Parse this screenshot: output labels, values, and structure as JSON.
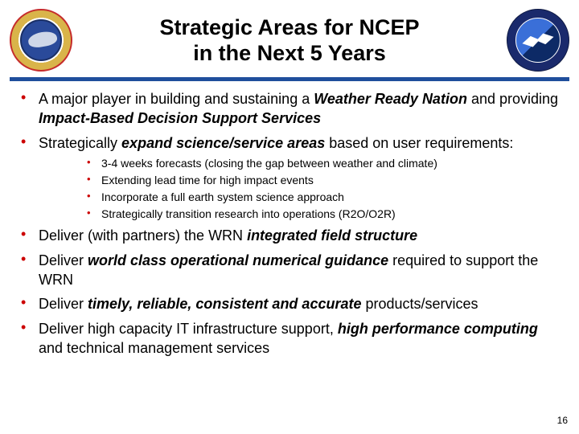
{
  "title_line1": "Strategic Areas for NCEP",
  "title_line2": "in the Next 5 Years",
  "title_fontsize": "27px",
  "bullet_color": "#cc0000",
  "divider_color": "#1f4e9c",
  "main_fontsize": "18px",
  "sub_fontsize": "14px",
  "slidenum": "16",
  "slidenum_fontsize": "12px",
  "bullets": {
    "b1_a": "A major player in building and sustaining a ",
    "b1_b": "Weather Ready Nation",
    "b1_c": " and providing ",
    "b1_d": "Impact-Based Decision Support Services",
    "b2_a": "Strategically ",
    "b2_b": "expand science/service areas",
    "b2_c": " based on user requirements:",
    "s1": "3-4 weeks forecasts (closing the gap between weather and climate)",
    "s2": "Extending lead time for high impact events",
    "s3": "Incorporate a full earth system science approach",
    "s4": "Strategically transition research into operations (R2O/O2R)",
    "b3_a": "Deliver (with partners) the WRN ",
    "b3_b": "integrated field structure",
    "b4_a": "Deliver ",
    "b4_b": "world class operational numerical guidance",
    "b4_c": " required to support the WRN",
    "b5_a": "Deliver ",
    "b5_b": "timely, reliable, consistent and accurate",
    "b5_c": " products/services",
    "b6_a": "Deliver high capacity IT infrastructure support, ",
    "b6_b": "high performance computing",
    "b6_c": " and technical management services"
  }
}
